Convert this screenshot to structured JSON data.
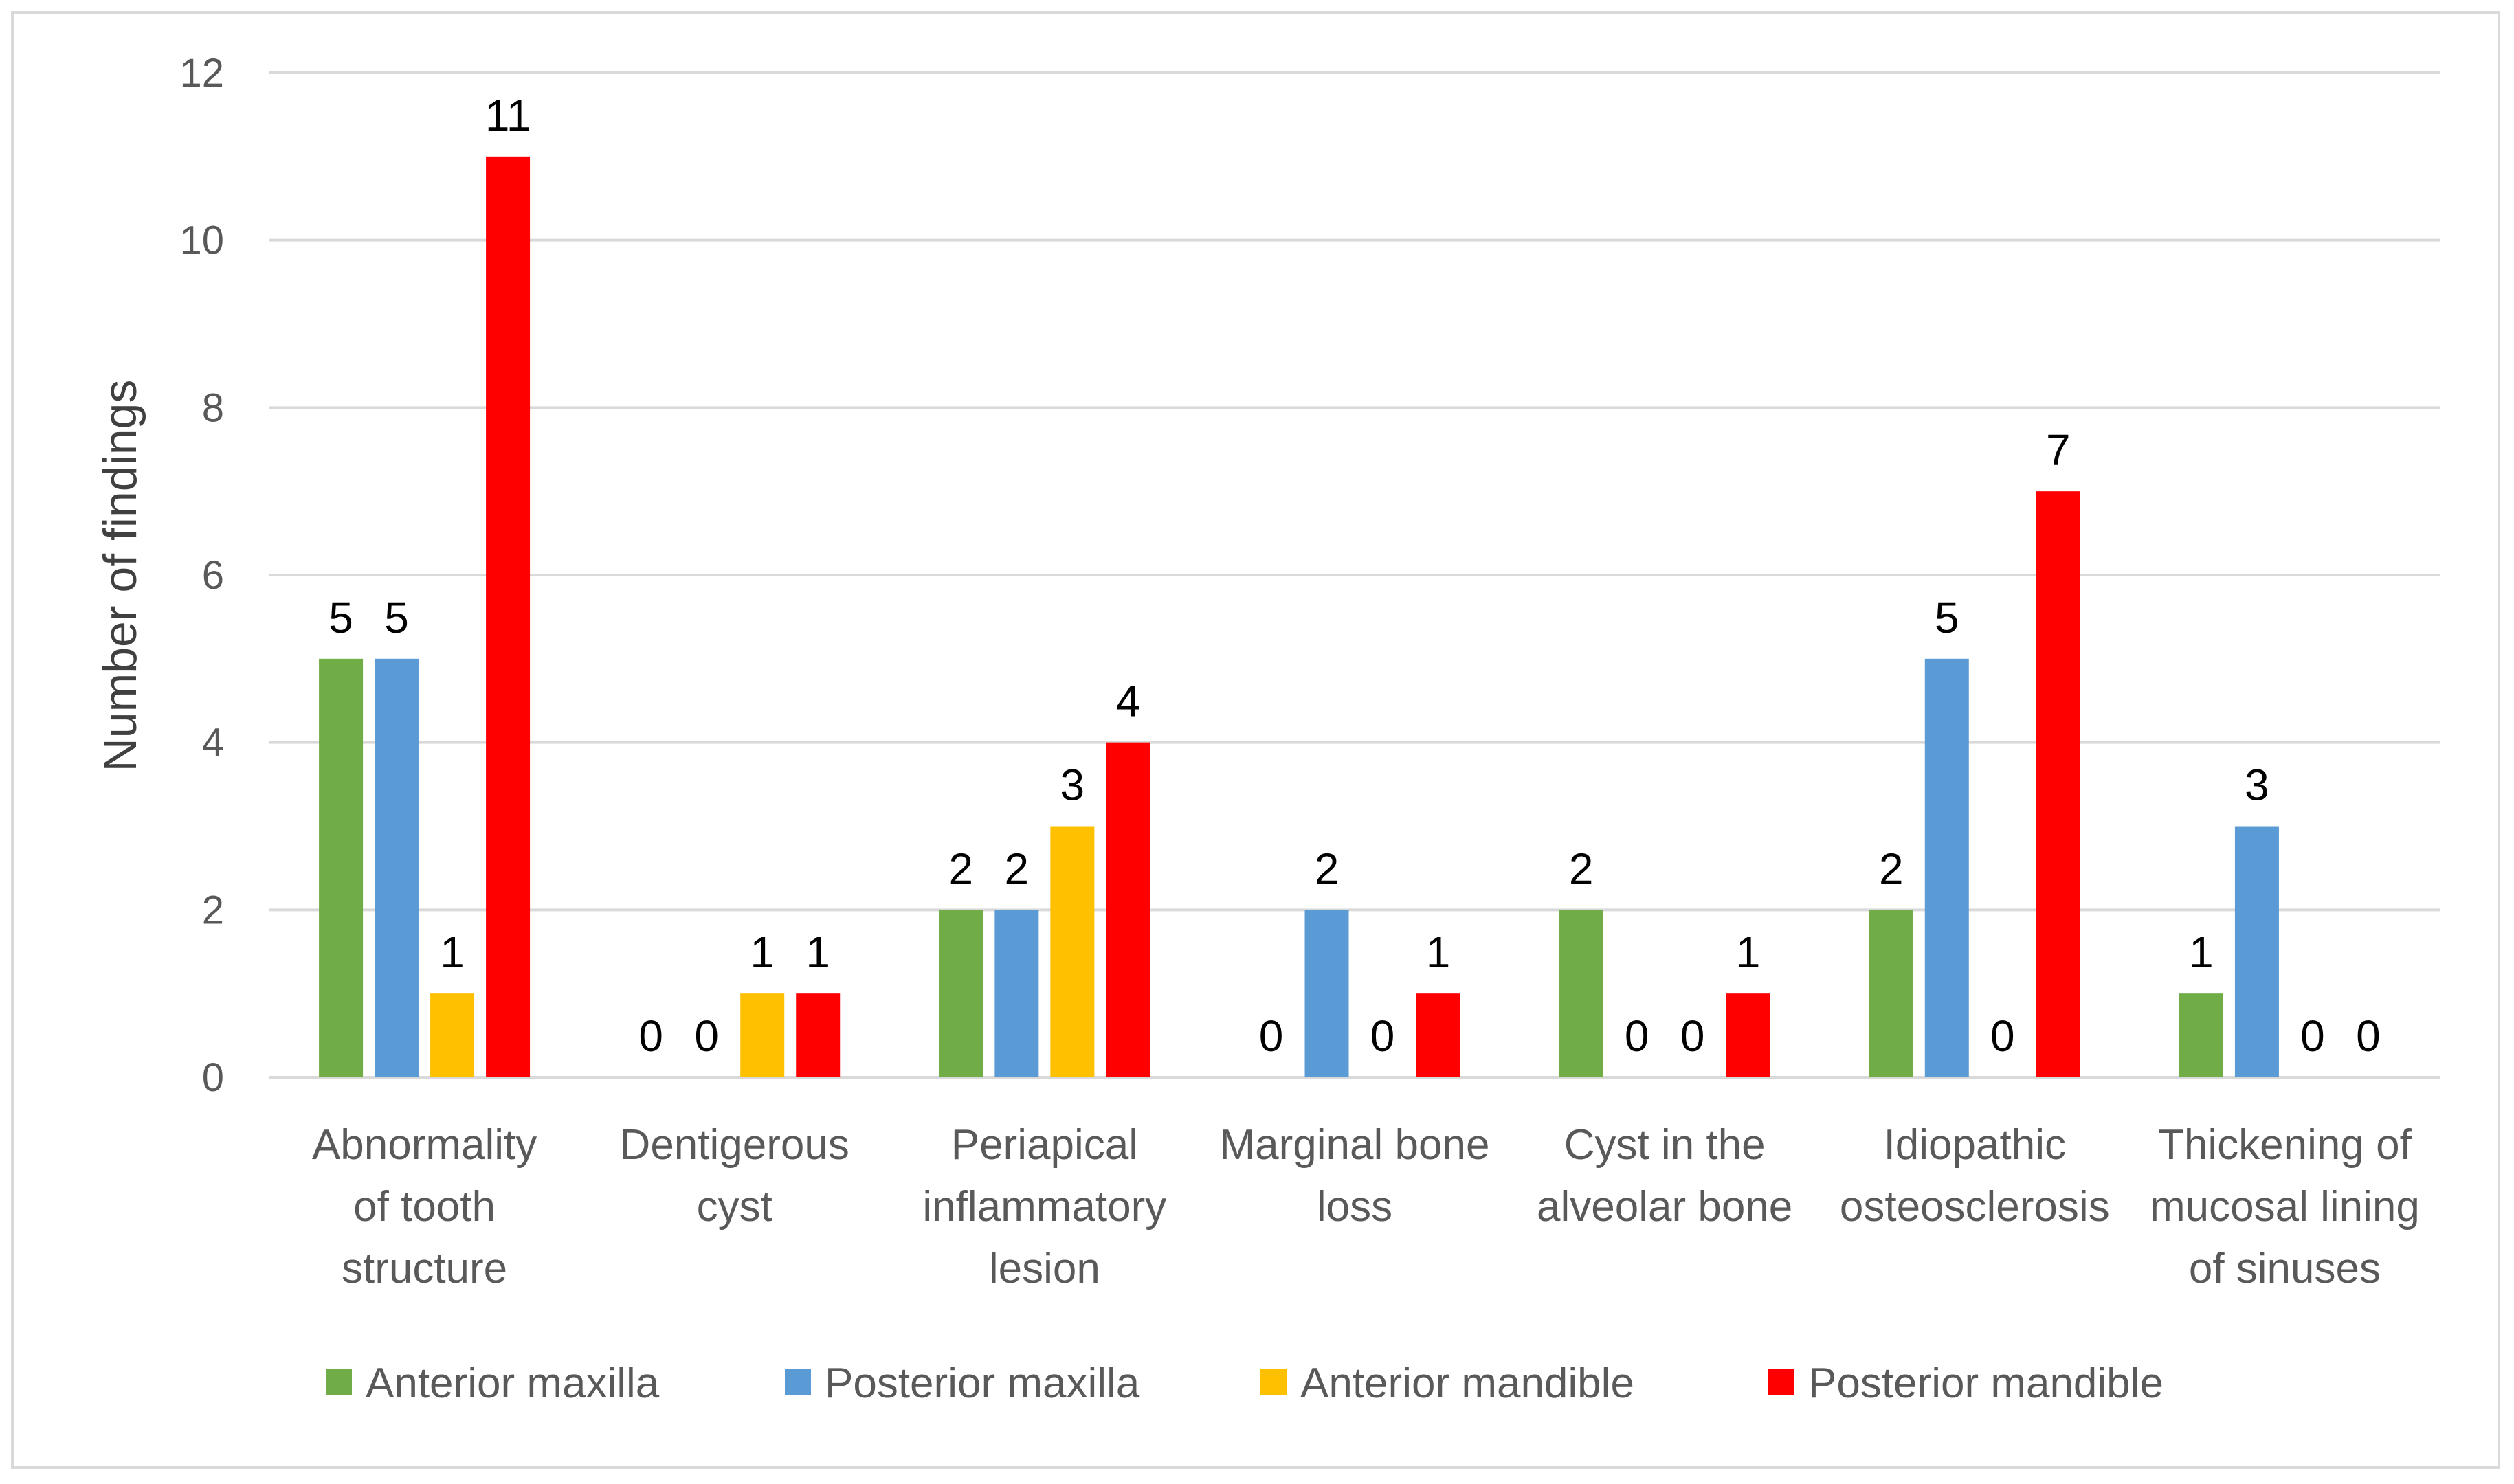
{
  "chart_data": {
    "type": "bar",
    "title": "",
    "xlabel": "",
    "ylabel": "Number of findings",
    "ylim": [
      0,
      12
    ],
    "yticks": [
      0,
      2,
      4,
      6,
      8,
      10,
      12
    ],
    "grid": true,
    "legend_position": "bottom",
    "categories": [
      [
        "Abnormality",
        "of tooth",
        "structure"
      ],
      [
        "Dentigerous",
        "cyst"
      ],
      [
        "Periapical",
        "inflammatory",
        "lesion"
      ],
      [
        "Marginal bone",
        "loss"
      ],
      [
        "Cyst in the",
        "alveolar bone"
      ],
      [
        "Idiopathic",
        "osteosclerosis"
      ],
      [
        "Thickening of",
        "mucosal lining",
        "of sinuses"
      ]
    ],
    "series": [
      {
        "name": "Anterior maxilla",
        "color": "#70ad47",
        "values": [
          5,
          0,
          2,
          0,
          2,
          2,
          1
        ]
      },
      {
        "name": "Posterior maxilla",
        "color": "#5b9bd5",
        "values": [
          5,
          0,
          2,
          2,
          0,
          5,
          3
        ]
      },
      {
        "name": "Anterior mandible",
        "color": "#ffc000",
        "values": [
          1,
          1,
          3,
          0,
          0,
          0,
          0
        ]
      },
      {
        "name": "Posterior mandible",
        "color": "#ff0000",
        "values": [
          11,
          1,
          4,
          1,
          1,
          7,
          0
        ]
      }
    ]
  }
}
